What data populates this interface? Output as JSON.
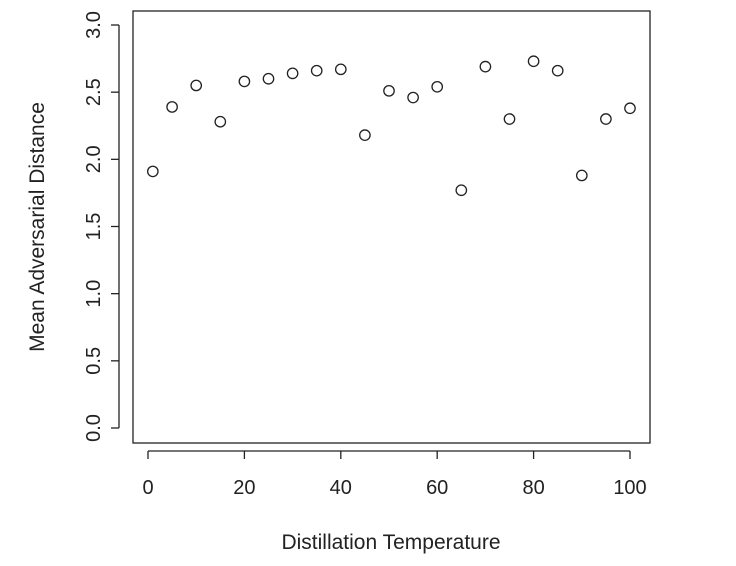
{
  "chart_data": {
    "type": "scatter",
    "title": "",
    "xlabel": "Distillation Temperature",
    "ylabel": "Mean Adversarial Distance",
    "xlim": [
      0,
      100
    ],
    "ylim": [
      0,
      3
    ],
    "x_ticks": [
      0,
      20,
      40,
      60,
      80,
      100
    ],
    "x_tick_labels": [
      "0",
      "20",
      "40",
      "60",
      "80",
      "100"
    ],
    "y_ticks": [
      0,
      0.5,
      1,
      1.5,
      2,
      2.5,
      3
    ],
    "y_tick_labels": [
      "0.0",
      "0.5",
      "1.0",
      "1.5",
      "2.0",
      "2.5",
      "3.0"
    ],
    "grid": false,
    "marker": "open-circle",
    "series": [
      {
        "x": [
          1,
          5,
          10,
          15,
          20,
          25,
          30,
          35,
          40,
          45,
          50,
          55,
          60,
          65,
          70,
          75,
          80,
          85,
          90,
          95,
          100
        ],
        "y": [
          1.91,
          2.39,
          2.55,
          2.28,
          2.58,
          2.6,
          2.64,
          2.66,
          2.67,
          2.18,
          2.51,
          2.46,
          2.54,
          1.77,
          2.69,
          2.3,
          2.73,
          2.66,
          1.88,
          2.3,
          2.38
        ]
      }
    ]
  }
}
